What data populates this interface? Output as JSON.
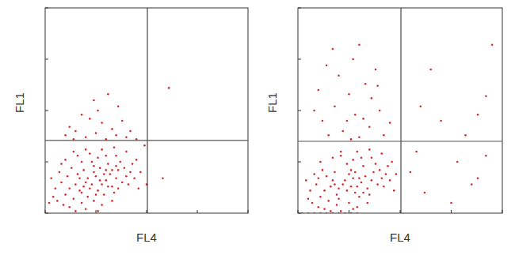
{
  "chart_data": [
    {
      "type": "scatter",
      "x_label": "FL4",
      "y_label": "FL1",
      "color": "#d42a2a",
      "marker": "circle",
      "tick_labels": false,
      "xlim": [
        0,
        100
      ],
      "ylim": [
        0,
        100
      ],
      "xticks": [
        0,
        25,
        50,
        75,
        100
      ],
      "yticks": [
        0,
        25,
        50,
        75,
        100
      ],
      "quadrant": {
        "x": 50.4,
        "y": 35.4
      },
      "x": [
        20,
        22,
        25,
        28,
        30,
        18,
        24,
        26,
        32,
        27,
        15,
        21,
        29,
        33,
        35,
        23,
        19,
        17,
        31,
        36,
        12,
        14,
        16,
        38,
        40,
        34,
        37,
        26,
        22,
        30,
        10,
        8,
        13,
        11,
        39,
        42,
        41,
        44,
        43,
        35,
        6,
        9,
        12,
        18,
        24,
        28,
        33,
        20,
        15,
        26,
        7,
        5,
        4,
        10,
        16,
        20,
        28,
        34,
        40,
        45,
        46,
        47,
        3,
        2,
        8,
        14,
        18,
        24,
        30,
        36,
        21,
        23,
        25,
        27,
        29,
        31,
        19,
        17,
        33,
        35,
        20,
        25,
        15,
        30,
        35,
        12,
        28,
        22,
        40,
        18,
        33,
        26,
        38,
        14,
        42,
        24,
        36,
        31,
        45,
        10,
        61,
        58,
        50,
        49
      ],
      "values": [
        15,
        12,
        18,
        14,
        16,
        10,
        20,
        11,
        19,
        22,
        14,
        8,
        9,
        13,
        17,
        25,
        21,
        17,
        24,
        21,
        12,
        7,
        19,
        15,
        18,
        10,
        25,
        27,
        29,
        28,
        9,
        15,
        22,
        18,
        22,
        20,
        14,
        17,
        24,
        28,
        6,
        4,
        3,
        5,
        6,
        4,
        6,
        2,
        1,
        1,
        20,
        12,
        8,
        26,
        28,
        31,
        31,
        32,
        30,
        26,
        12,
        20,
        17,
        5,
        24,
        30,
        25,
        23,
        21,
        12,
        17,
        14,
        9,
        16,
        19,
        13,
        13,
        11,
        21,
        23,
        37,
        39,
        40,
        36,
        38,
        42,
        44,
        46,
        37,
        48,
        41,
        50,
        45,
        36,
        40,
        55,
        52,
        58,
        36,
        38,
        61,
        17,
        14,
        33
      ]
    },
    {
      "type": "scatter",
      "x_label": "FL4",
      "y_label": "FL1",
      "color": "#d42a2a",
      "marker": "circle",
      "tick_labels": false,
      "xlim": [
        0,
        100
      ],
      "ylim": [
        0,
        100
      ],
      "xticks": [
        0,
        25,
        50,
        75,
        100
      ],
      "yticks": [
        0,
        25,
        50,
        75,
        100
      ],
      "quadrant": {
        "x": 50.4,
        "y": 35
      },
      "x": [
        22,
        24,
        27,
        29,
        31,
        19,
        25,
        28,
        33,
        26,
        16,
        20,
        30,
        34,
        36,
        24,
        18,
        17,
        32,
        37,
        13,
        15,
        14,
        39,
        41,
        35,
        38,
        27,
        21,
        31,
        11,
        9,
        12,
        10,
        40,
        43,
        42,
        45,
        44,
        36,
        7,
        10,
        13,
        19,
        25,
        29,
        34,
        21,
        16,
        27,
        8,
        6,
        5,
        11,
        17,
        21,
        29,
        35,
        41,
        46,
        47,
        48,
        4,
        23,
        26,
        28,
        30,
        20,
        18,
        32,
        2,
        5,
        8,
        11,
        14,
        17,
        20,
        23,
        26,
        29,
        15,
        22,
        30,
        12,
        28,
        35,
        18,
        25,
        40,
        10,
        33,
        20,
        38,
        27,
        14,
        42,
        8,
        30,
        36,
        24,
        45,
        17,
        32,
        26,
        39,
        60,
        70,
        88,
        92,
        65,
        82,
        95,
        55,
        62,
        78,
        85,
        88,
        75,
        58,
        92
      ],
      "values": [
        14,
        11,
        17,
        13,
        15,
        9,
        19,
        10,
        18,
        21,
        13,
        7,
        8,
        12,
        16,
        24,
        20,
        16,
        23,
        20,
        11,
        6,
        18,
        14,
        17,
        9,
        24,
        26,
        28,
        27,
        8,
        14,
        21,
        17,
        21,
        19,
        13,
        16,
        23,
        27,
        5,
        3,
        2,
        4,
        5,
        3,
        5,
        1,
        1,
        2,
        19,
        11,
        7,
        25,
        27,
        30,
        30,
        31,
        29,
        25,
        11,
        19,
        16,
        16,
        13,
        20,
        17,
        12,
        14,
        10,
        0,
        0,
        0,
        0,
        0,
        0,
        0,
        0,
        0,
        0,
        38,
        40,
        37,
        45,
        48,
        42,
        52,
        58,
        50,
        60,
        63,
        67,
        70,
        75,
        72,
        38,
        50,
        82,
        56,
        45,
        44,
        80,
        46,
        36,
        62,
        52,
        45,
        48,
        57,
        70,
        38,
        82,
        20,
        10,
        25,
        14,
        17,
        5,
        30,
        28
      ]
    }
  ]
}
